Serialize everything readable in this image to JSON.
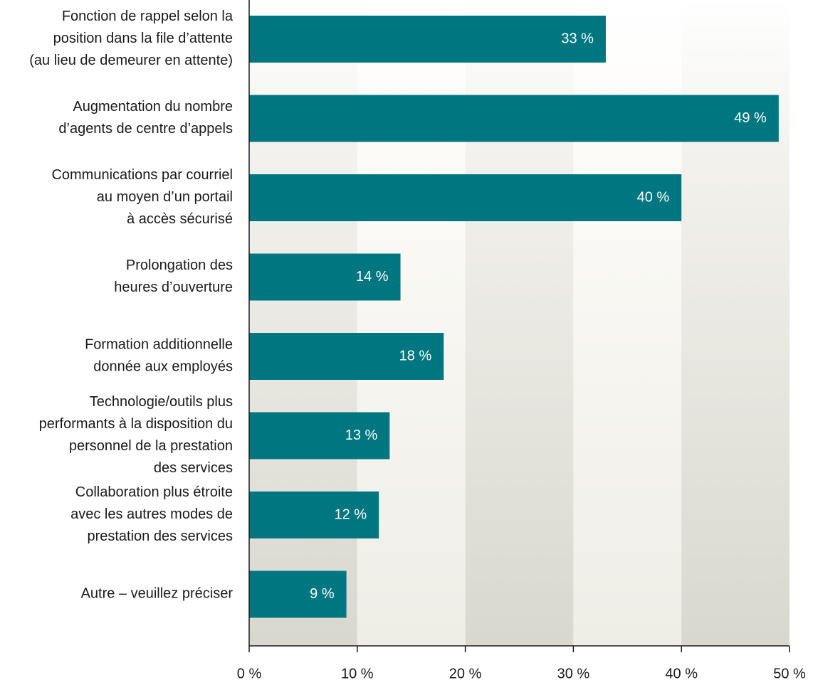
{
  "chart_data": {
    "type": "hbar",
    "categories": [
      "Fonction de rappel selon la\nposition dans la file d’attente\n(au lieu de demeurer en attente)",
      "Augmentation du nombre\nd’agents de centre d’appels",
      "Communications par courriel\nau moyen d’un portail\nà accès sécurisé",
      "Prolongation des\nheures d’ouverture",
      "Formation additionnelle\ndonnée aux employés",
      "Technologie/outils plus\nperformants à la disposition du\npersonnel de la prestation\ndes services",
      "Collaboration plus étroite\navec les autres modes de\nprestation des services",
      "Autre – veuillez préciser"
    ],
    "values": [
      33,
      49,
      40,
      14,
      18,
      13,
      12,
      9
    ],
    "value_labels": [
      "33 %",
      "49 %",
      "40 %",
      "14 %",
      "18 %",
      "13 %",
      "12 %",
      "9 %"
    ],
    "color": "#007681",
    "xlim": [
      0,
      50
    ],
    "xticks": [
      {
        "value": 0,
        "label": "0 %"
      },
      {
        "value": 10,
        "label": "10 %"
      },
      {
        "value": 20,
        "label": "20 %"
      },
      {
        "value": 30,
        "label": "30 %"
      },
      {
        "value": 40,
        "label": "40 %"
      },
      {
        "value": 50,
        "label": "50 %"
      }
    ]
  }
}
